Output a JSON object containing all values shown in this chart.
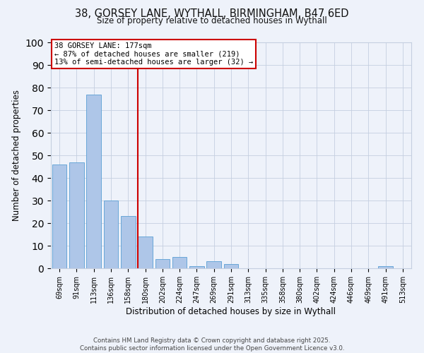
{
  "title1": "38, GORSEY LANE, WYTHALL, BIRMINGHAM, B47 6ED",
  "title2": "Size of property relative to detached houses in Wythall",
  "xlabel": "Distribution of detached houses by size in Wythall",
  "ylabel": "Number of detached properties",
  "categories": [
    "69sqm",
    "91sqm",
    "113sqm",
    "136sqm",
    "158sqm",
    "180sqm",
    "202sqm",
    "224sqm",
    "247sqm",
    "269sqm",
    "291sqm",
    "313sqm",
    "335sqm",
    "358sqm",
    "380sqm",
    "402sqm",
    "424sqm",
    "446sqm",
    "469sqm",
    "491sqm",
    "513sqm"
  ],
  "values": [
    46,
    47,
    77,
    30,
    23,
    14,
    4,
    5,
    1,
    3,
    2,
    0,
    0,
    0,
    0,
    0,
    0,
    0,
    0,
    1,
    0
  ],
  "bar_color": "#aec6e8",
  "bar_edge_color": "#5a9fd4",
  "vline_color": "#cc0000",
  "annotation_title": "38 GORSEY LANE: 177sqm",
  "annotation_line1": "← 87% of detached houses are smaller (219)",
  "annotation_line2": "13% of semi-detached houses are larger (32) →",
  "annotation_box_color": "#cc0000",
  "ylim": [
    0,
    100
  ],
  "yticks": [
    0,
    10,
    20,
    30,
    40,
    50,
    60,
    70,
    80,
    90,
    100
  ],
  "footer1": "Contains HM Land Registry data © Crown copyright and database right 2025.",
  "footer2": "Contains public sector information licensed under the Open Government Licence v3.0.",
  "bg_color": "#eef2fa",
  "grid_color": "#c5cfe0"
}
